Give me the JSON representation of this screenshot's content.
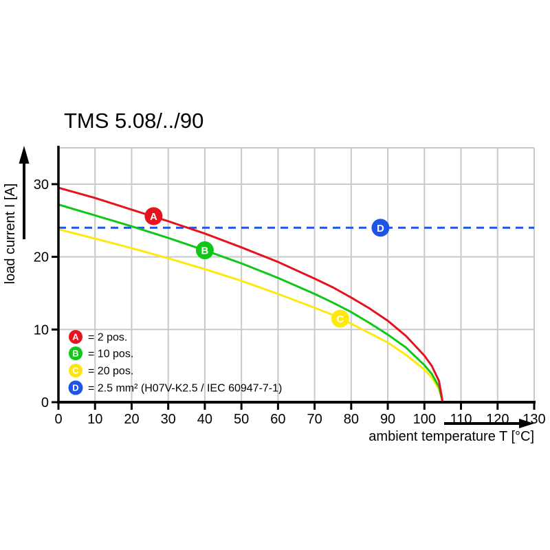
{
  "chart": {
    "title": "TMS 5.08/../90",
    "xlabel": "ambient temperature T [°C]",
    "ylabel": "load current I [A]"
  },
  "legend": {
    "items": [
      {
        "letter": "A",
        "label": "= 2 pos.",
        "color": "#e6131f"
      },
      {
        "letter": "B",
        "label": "= 10 pos.",
        "color": "#0fc718"
      },
      {
        "letter": "C",
        "label": "= 20 pos.",
        "color": "#ffe412"
      },
      {
        "letter": "D",
        "label": "= 2.5 mm² (H07V-K2.5 / IEC 60947-7-1)",
        "color": "#1f55e6"
      }
    ]
  },
  "chart_data": {
    "type": "line",
    "title": "TMS 5.08/../90",
    "xlabel": "ambient temperature T [°C]",
    "ylabel": "load current I [A]",
    "xlim": [
      0,
      130
    ],
    "ylim": [
      0,
      35
    ],
    "xticks": [
      0,
      10,
      20,
      30,
      40,
      50,
      60,
      70,
      80,
      90,
      100,
      110,
      120,
      130
    ],
    "yticks": [
      0,
      10,
      20,
      30
    ],
    "grid": true,
    "legend_position": "bottom-left-inside",
    "colors": {
      "grid": "#c9c9c9",
      "axis": "#000000",
      "background": "#ffffff"
    },
    "series": [
      {
        "name": "2 pos.",
        "letter": "A",
        "color": "#e6131f",
        "dashed": false,
        "marker": {
          "t": 26,
          "i": 25.6
        },
        "points": [
          [
            0,
            29.5
          ],
          [
            10,
            28.1
          ],
          [
            20,
            26.5
          ],
          [
            30,
            24.9
          ],
          [
            40,
            23.2
          ],
          [
            50,
            21.3
          ],
          [
            60,
            19.3
          ],
          [
            70,
            17.0
          ],
          [
            75,
            15.8
          ],
          [
            80,
            14.4
          ],
          [
            85,
            12.9
          ],
          [
            90,
            11.2
          ],
          [
            95,
            9.1
          ],
          [
            100,
            6.4
          ],
          [
            102,
            5.0
          ],
          [
            104,
            2.9
          ],
          [
            105,
            0
          ]
        ]
      },
      {
        "name": "10 pos.",
        "letter": "B",
        "color": "#0fc718",
        "dashed": false,
        "marker": {
          "t": 40,
          "i": 20.9
        },
        "points": [
          [
            0,
            27.2
          ],
          [
            10,
            25.7
          ],
          [
            20,
            24.2
          ],
          [
            30,
            22.6
          ],
          [
            40,
            20.9
          ],
          [
            50,
            19.1
          ],
          [
            60,
            17.1
          ],
          [
            70,
            14.9
          ],
          [
            75,
            13.7
          ],
          [
            80,
            12.4
          ],
          [
            85,
            10.9
          ],
          [
            90,
            9.3
          ],
          [
            95,
            7.5
          ],
          [
            100,
            5.1
          ],
          [
            102,
            3.9
          ],
          [
            104,
            2.1
          ],
          [
            105,
            0
          ]
        ]
      },
      {
        "name": "20 pos.",
        "letter": "C",
        "color": "#ffe80c",
        "dashed": false,
        "marker": {
          "t": 77,
          "i": 11.5
        },
        "points": [
          [
            0,
            23.8
          ],
          [
            10,
            22.5
          ],
          [
            20,
            21.2
          ],
          [
            30,
            19.8
          ],
          [
            40,
            18.3
          ],
          [
            50,
            16.7
          ],
          [
            60,
            14.9
          ],
          [
            70,
            13.0
          ],
          [
            75,
            12.0
          ],
          [
            80,
            10.8
          ],
          [
            85,
            9.5
          ],
          [
            90,
            8.2
          ],
          [
            95,
            6.5
          ],
          [
            100,
            4.5
          ],
          [
            102,
            3.4
          ],
          [
            104,
            1.8
          ],
          [
            105,
            0
          ]
        ]
      },
      {
        "name": "2.5 mm² (H07V-K2.5 / IEC 60947-7-1)",
        "letter": "D",
        "color": "#1f55e6",
        "dashed": true,
        "marker": {
          "t": 88,
          "i": 24
        },
        "points": [
          [
            0,
            24
          ],
          [
            130,
            24
          ]
        ]
      }
    ]
  }
}
